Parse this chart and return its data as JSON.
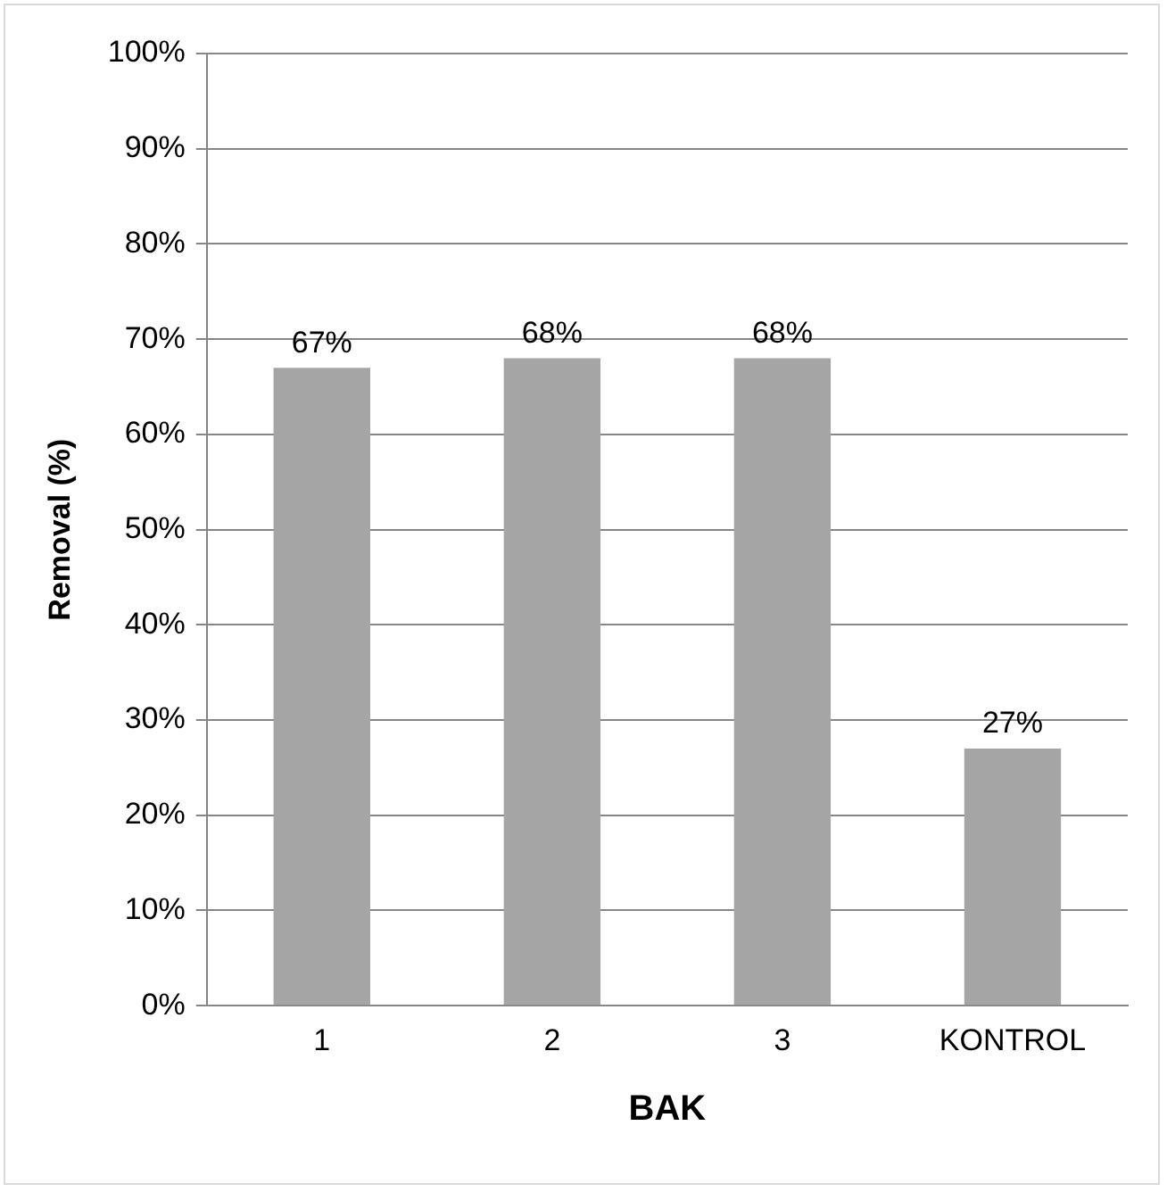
{
  "chart_data": {
    "type": "bar",
    "xlabel": "BAK",
    "ylabel": "Removal (%)",
    "categories": [
      "1",
      "2",
      "3",
      "KONTROL"
    ],
    "values": [
      67,
      68,
      68,
      27
    ],
    "color": "#a5a5a5",
    "ylim": [
      0,
      100
    ],
    "yticks": [
      {
        "value": 0,
        "label": "0%"
      },
      {
        "value": 10,
        "label": "10%"
      },
      {
        "value": 20,
        "label": "20%"
      },
      {
        "value": 30,
        "label": "30%"
      },
      {
        "value": 40,
        "label": "40%"
      },
      {
        "value": 50,
        "label": "50%"
      },
      {
        "value": 60,
        "label": "60%"
      },
      {
        "value": 70,
        "label": "70%"
      },
      {
        "value": 80,
        "label": "80%"
      },
      {
        "value": 90,
        "label": "90%"
      },
      {
        "value": 100,
        "label": "100%"
      }
    ],
    "value_labels": [
      "67%",
      "68%",
      "68%",
      "27%"
    ],
    "grid": "y",
    "legend": false
  }
}
